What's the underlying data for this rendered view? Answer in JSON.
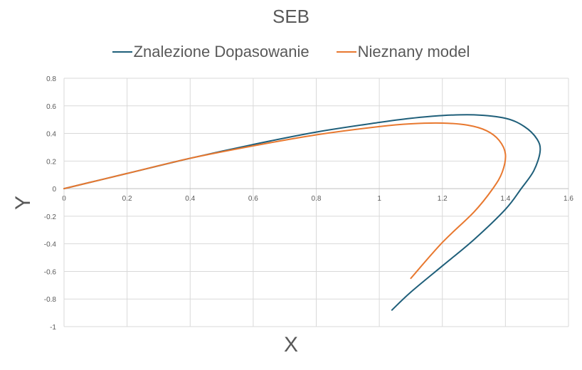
{
  "chart_data": {
    "type": "line",
    "title": "SEB",
    "xlabel": "X",
    "ylabel": "Y",
    "xlim": [
      0,
      1.6
    ],
    "ylim": [
      -1,
      0.8
    ],
    "x_ticks": [
      "0",
      "0.2",
      "0.4",
      "0.6",
      "0.8",
      "1",
      "1.2",
      "1.4",
      "1.6"
    ],
    "y_ticks": [
      "0.8",
      "0.6",
      "0.4",
      "0.2",
      "0",
      "-0.2",
      "-0.4",
      "-0.6",
      "-0.8",
      "-1"
    ],
    "grid": true,
    "legend_position": "top",
    "series": [
      {
        "name": "Znalezione Dopasowanie",
        "color": "#1f5f7a",
        "points": [
          [
            0,
            0
          ],
          [
            0.2,
            0.11
          ],
          [
            0.4,
            0.22
          ],
          [
            0.6,
            0.32
          ],
          [
            0.8,
            0.41
          ],
          [
            1.0,
            0.48
          ],
          [
            1.1,
            0.51
          ],
          [
            1.2,
            0.53
          ],
          [
            1.3,
            0.535
          ],
          [
            1.4,
            0.51
          ],
          [
            1.46,
            0.45
          ],
          [
            1.5,
            0.36
          ],
          [
            1.51,
            0.27
          ],
          [
            1.49,
            0.13
          ],
          [
            1.45,
            0.0
          ],
          [
            1.4,
            -0.15
          ],
          [
            1.3,
            -0.37
          ],
          [
            1.2,
            -0.56
          ],
          [
            1.1,
            -0.75
          ],
          [
            1.04,
            -0.88
          ]
        ]
      },
      {
        "name": "Nieznany model",
        "color": "#e8782f",
        "points": [
          [
            0,
            0
          ],
          [
            0.2,
            0.11
          ],
          [
            0.4,
            0.22
          ],
          [
            0.6,
            0.31
          ],
          [
            0.8,
            0.39
          ],
          [
            1.0,
            0.45
          ],
          [
            1.1,
            0.47
          ],
          [
            1.2,
            0.475
          ],
          [
            1.28,
            0.46
          ],
          [
            1.34,
            0.42
          ],
          [
            1.38,
            0.35
          ],
          [
            1.4,
            0.25
          ],
          [
            1.39,
            0.12
          ],
          [
            1.36,
            0.0
          ],
          [
            1.3,
            -0.17
          ],
          [
            1.2,
            -0.39
          ],
          [
            1.1,
            -0.65
          ]
        ]
      }
    ]
  }
}
